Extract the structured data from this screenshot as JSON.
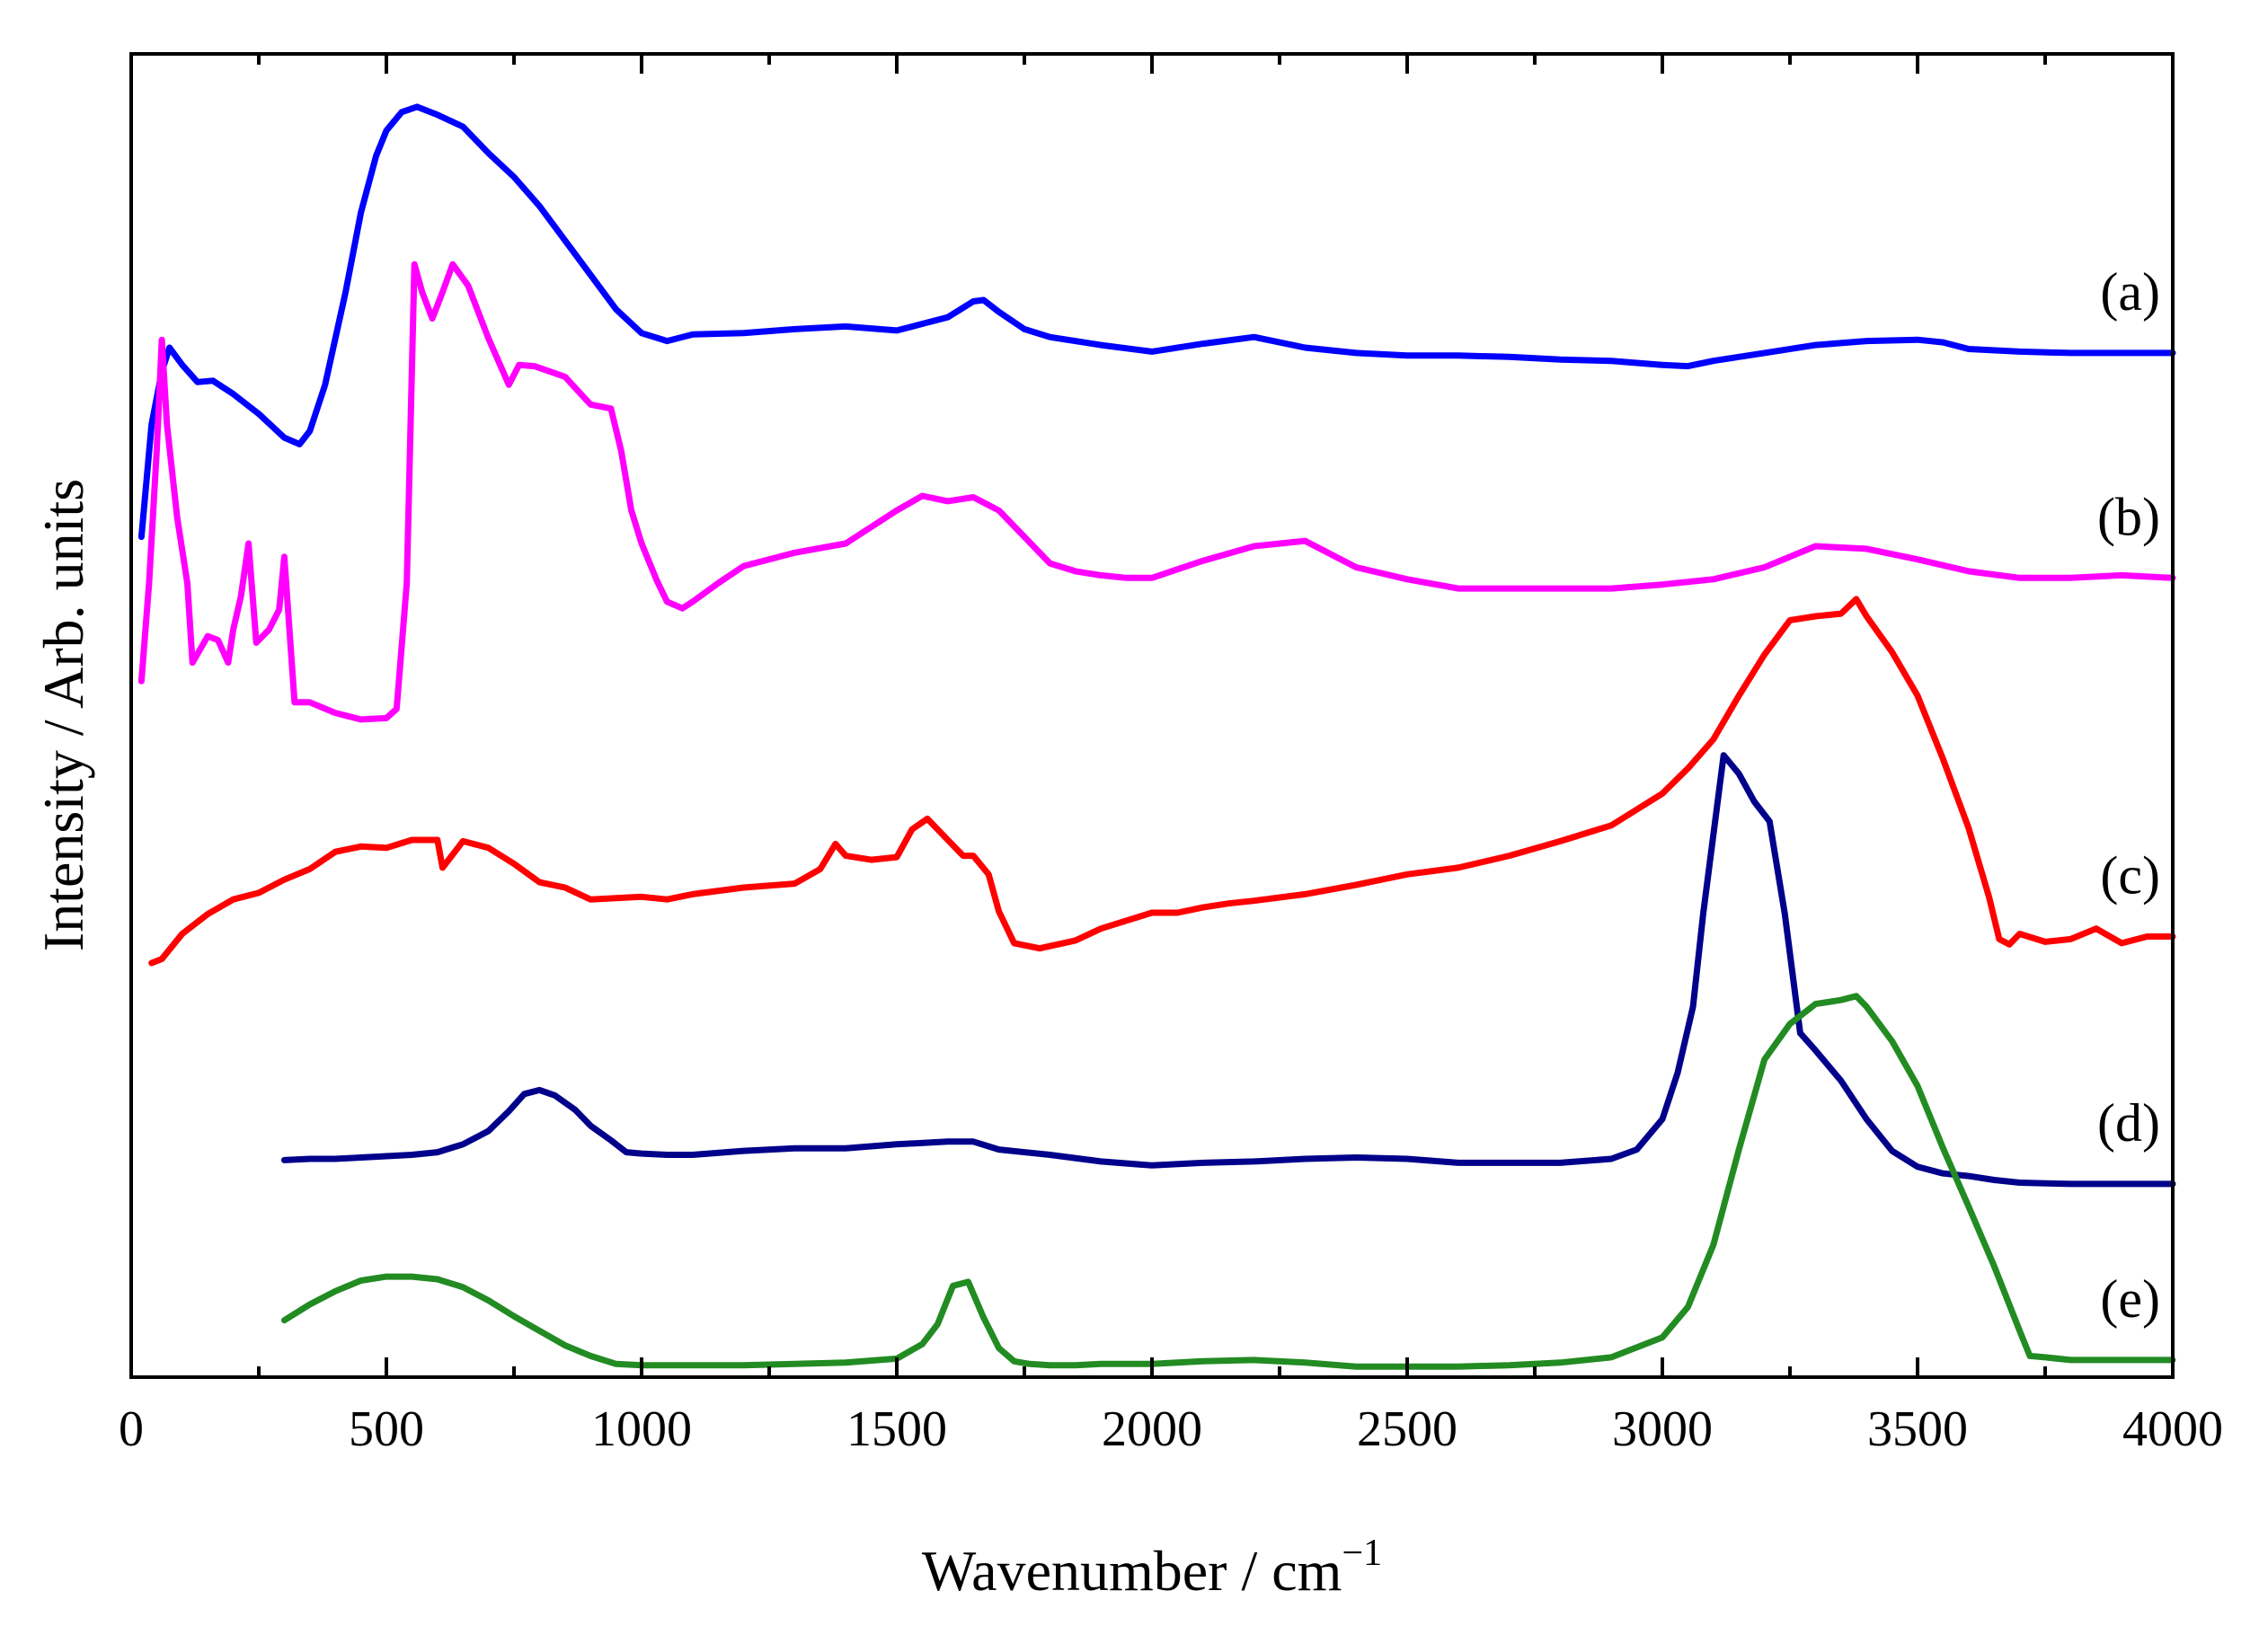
{
  "chart_data": {
    "type": "line",
    "title": "",
    "xlabel": "Wavenumber / cm",
    "xlabel_superscript": "−1",
    "ylabel": "Intensity / Arb. units",
    "xlim": [
      0,
      4000
    ],
    "ylim": [
      0,
      100
    ],
    "xticks": [
      0,
      500,
      1000,
      1500,
      2000,
      2500,
      3000,
      3500,
      4000
    ],
    "xtick_labels": [
      "0",
      "500",
      "1000",
      "1500",
      "2000",
      "2500",
      "3000",
      "3500",
      "4000"
    ],
    "yticks_shown": false,
    "grid": false,
    "series": [
      {
        "name": "(a)",
        "color": "#0000ff",
        "x": [
          20,
          40,
          60,
          75,
          100,
          130,
          160,
          200,
          250,
          300,
          330,
          350,
          380,
          420,
          450,
          480,
          500,
          530,
          560,
          600,
          650,
          700,
          750,
          800,
          850,
          900,
          950,
          1000,
          1050,
          1100,
          1200,
          1300,
          1400,
          1500,
          1550,
          1600,
          1650,
          1670,
          1700,
          1750,
          1800,
          1900,
          2000,
          2100,
          2200,
          2300,
          2400,
          2500,
          2600,
          2700,
          2800,
          2900,
          3000,
          3050,
          3100,
          3200,
          3300,
          3400,
          3500,
          3550,
          3600,
          3700,
          3800,
          3900,
          4000
        ],
        "y": [
          63.5,
          72,
          76,
          77.8,
          76.5,
          75.2,
          75.3,
          74.3,
          72.8,
          71,
          70.5,
          71.5,
          75,
          82,
          88,
          92.3,
          94.2,
          95.6,
          96,
          95.4,
          94.5,
          92.5,
          90.7,
          88.5,
          85.9,
          83.3,
          80.7,
          78.9,
          78.3,
          78.8,
          78.9,
          79.2,
          79.4,
          79.1,
          79.6,
          80.1,
          81.3,
          81.4,
          80.5,
          79.2,
          78.6,
          78,
          77.5,
          78.1,
          78.6,
          77.8,
          77.4,
          77.2,
          77.2,
          77.1,
          76.9,
          76.8,
          76.5,
          76.4,
          76.8,
          77.4,
          78,
          78.3,
          78.4,
          78.2,
          77.7,
          77.5,
          77.4,
          77.4,
          77.4
        ]
      },
      {
        "name": "(b)",
        "color": "#ff00ff",
        "x": [
          20,
          35,
          50,
          60,
          70,
          90,
          110,
          120,
          150,
          170,
          190,
          200,
          215,
          230,
          245,
          270,
          290,
          300,
          320,
          350,
          400,
          450,
          500,
          520,
          540,
          555,
          570,
          590,
          610,
          630,
          660,
          700,
          740,
          760,
          790,
          850,
          900,
          940,
          960,
          980,
          1000,
          1030,
          1050,
          1080,
          1100,
          1150,
          1200,
          1300,
          1400,
          1500,
          1550,
          1600,
          1650,
          1700,
          1750,
          1800,
          1850,
          1900,
          1950,
          2000,
          2100,
          2200,
          2300,
          2400,
          2500,
          2600,
          2700,
          2800,
          2900,
          3000,
          3100,
          3200,
          3300,
          3400,
          3500,
          3600,
          3700,
          3800,
          3900,
          4000
        ],
        "y": [
          52.6,
          60,
          70,
          78.4,
          72,
          65,
          60,
          54,
          56,
          55.7,
          54,
          56.5,
          59,
          63,
          55.5,
          56.5,
          58,
          62,
          51,
          51,
          50.2,
          49.7,
          49.8,
          50.5,
          60,
          84.1,
          82,
          80,
          82,
          84.1,
          82.5,
          78.5,
          75,
          76.5,
          76.4,
          75.6,
          73.5,
          73.2,
          70,
          65.5,
          63,
          60.2,
          58.6,
          58.1,
          58.6,
          60,
          61.3,
          62.3,
          63,
          65.5,
          66.6,
          66.2,
          66.5,
          65.5,
          63.5,
          61.5,
          60.9,
          60.6,
          60.4,
          60.4,
          61.7,
          62.8,
          63.2,
          61.2,
          60.3,
          59.6,
          59.6,
          59.6,
          59.6,
          59.9,
          60.3,
          61.2,
          62.8,
          62.6,
          61.8,
          60.9,
          60.4,
          60.4,
          60.6,
          60.4
        ]
      },
      {
        "name": "(c)",
        "color": "#ff0000",
        "x": [
          40,
          60,
          100,
          150,
          200,
          250,
          300,
          350,
          400,
          450,
          500,
          550,
          600,
          610,
          650,
          700,
          750,
          800,
          850,
          900,
          950,
          1000,
          1050,
          1100,
          1200,
          1300,
          1350,
          1380,
          1400,
          1450,
          1500,
          1530,
          1560,
          1600,
          1630,
          1650,
          1680,
          1700,
          1730,
          1780,
          1850,
          1900,
          1950,
          2000,
          2050,
          2100,
          2150,
          2200,
          2300,
          2400,
          2500,
          2600,
          2700,
          2800,
          2900,
          3000,
          3050,
          3100,
          3150,
          3200,
          3250,
          3300,
          3350,
          3380,
          3400,
          3450,
          3500,
          3550,
          3600,
          3640,
          3660,
          3680,
          3700,
          3750,
          3800,
          3850,
          3900,
          3950,
          4000
        ],
        "y": [
          31.3,
          31.6,
          33.5,
          35,
          36.1,
          36.6,
          37.6,
          38.4,
          39.7,
          40.1,
          40,
          40.6,
          40.6,
          38.5,
          40.5,
          40,
          38.8,
          37.4,
          37,
          36.1,
          36.2,
          36.3,
          36.1,
          36.5,
          37,
          37.3,
          38.4,
          40.3,
          39.4,
          39.1,
          39.3,
          41.4,
          42.2,
          40.6,
          39.4,
          39.4,
          38,
          35.2,
          32.8,
          32.4,
          33,
          33.9,
          34.5,
          35.1,
          35.1,
          35.5,
          35.8,
          36,
          36.5,
          37.2,
          38,
          38.5,
          39.4,
          40.5,
          41.7,
          44.1,
          46,
          48.2,
          51.5,
          54.6,
          57.2,
          57.5,
          57.7,
          58.8,
          57.5,
          54.8,
          51.5,
          46.7,
          41.5,
          36.3,
          33.1,
          32.7,
          33.5,
          32.9,
          33.1,
          33.9,
          32.8,
          33.3,
          33.3
        ]
      },
      {
        "name": "(d)",
        "color": "#00008b",
        "x": [
          300,
          350,
          400,
          450,
          500,
          550,
          600,
          650,
          700,
          740,
          770,
          800,
          830,
          870,
          900,
          940,
          970,
          1000,
          1050,
          1100,
          1200,
          1300,
          1400,
          1500,
          1600,
          1650,
          1700,
          1800,
          1900,
          2000,
          2100,
          2200,
          2300,
          2400,
          2500,
          2600,
          2700,
          2800,
          2900,
          2950,
          3000,
          3030,
          3060,
          3080,
          3100,
          3120,
          3150,
          3180,
          3210,
          3240,
          3270,
          3300,
          3350,
          3400,
          3450,
          3500,
          3550,
          3600,
          3650,
          3700,
          3800,
          3900,
          4000
        ],
        "y": [
          16.4,
          16.5,
          16.5,
          16.6,
          16.7,
          16.8,
          17,
          17.6,
          18.6,
          20.1,
          21.4,
          21.7,
          21.3,
          20.2,
          19,
          17.9,
          17,
          16.9,
          16.8,
          16.8,
          17.1,
          17.3,
          17.3,
          17.6,
          17.8,
          17.8,
          17.2,
          16.8,
          16.3,
          16,
          16.2,
          16.3,
          16.5,
          16.6,
          16.5,
          16.2,
          16.2,
          16.2,
          16.5,
          17.2,
          19.5,
          23,
          28,
          35,
          41,
          47,
          45.6,
          43.5,
          42,
          35,
          26,
          24.7,
          22.4,
          19.5,
          17.1,
          15.9,
          15.4,
          15.2,
          14.9,
          14.7,
          14.6,
          14.6,
          14.6
        ]
      },
      {
        "name": "(e)",
        "color": "#228b22",
        "x": [
          300,
          350,
          400,
          450,
          500,
          550,
          600,
          650,
          700,
          750,
          800,
          850,
          900,
          950,
          1000,
          1050,
          1100,
          1200,
          1300,
          1400,
          1500,
          1550,
          1580,
          1610,
          1640,
          1670,
          1700,
          1730,
          1760,
          1800,
          1850,
          1900,
          2000,
          2100,
          2200,
          2300,
          2400,
          2500,
          2600,
          2700,
          2800,
          2900,
          3000,
          3050,
          3100,
          3150,
          3200,
          3250,
          3300,
          3350,
          3380,
          3400,
          3450,
          3500,
          3550,
          3600,
          3650,
          3700,
          3720,
          3750,
          3800,
          3900,
          4000
        ],
        "y": [
          4.3,
          5.5,
          6.5,
          7.3,
          7.6,
          7.6,
          7.4,
          6.8,
          5.8,
          4.6,
          3.5,
          2.4,
          1.6,
          1,
          0.9,
          0.9,
          0.9,
          0.9,
          1,
          1.1,
          1.4,
          2.5,
          4,
          6.9,
          7.2,
          4.5,
          2.2,
          1.2,
          1,
          0.9,
          0.9,
          1,
          1,
          1.2,
          1.3,
          1.1,
          0.8,
          0.8,
          0.8,
          0.9,
          1.1,
          1.5,
          3,
          5.3,
          10,
          17.2,
          24,
          26.7,
          28.2,
          28.5,
          28.8,
          28,
          25.4,
          22,
          17.3,
          12.9,
          8.4,
          3.5,
          1.6,
          1.5,
          1.3,
          1.3,
          1.3
        ]
      }
    ]
  }
}
